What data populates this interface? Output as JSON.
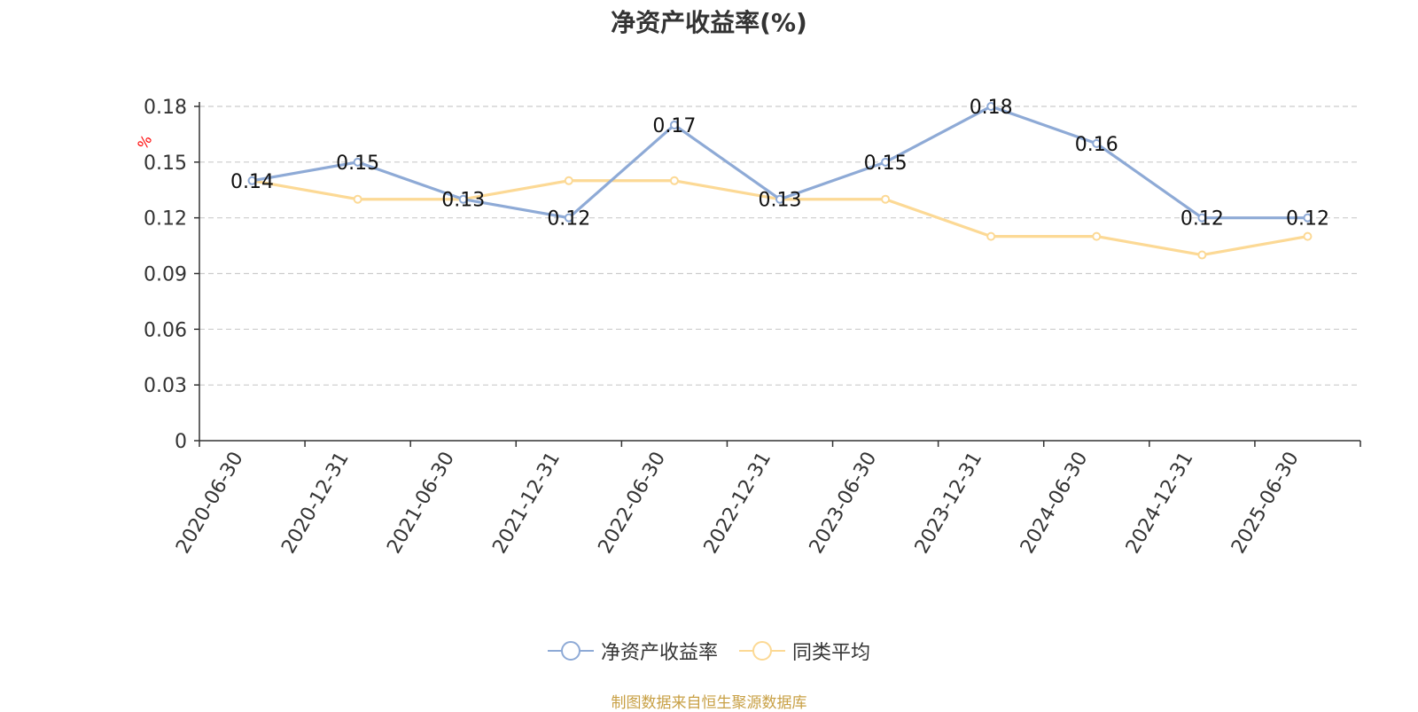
{
  "chart_data": {
    "type": "line",
    "title": "净资产收益率(%)",
    "ylabel": "%",
    "xlabel": "",
    "ylim": [
      0,
      0.18
    ],
    "yticks": [
      "0",
      "0.03",
      "0.06",
      "0.09",
      "0.12",
      "0.15",
      "0.18"
    ],
    "grid": true,
    "legend_position": "bottom",
    "categories": [
      "2020-06-30",
      "2020-12-31",
      "2021-06-30",
      "2021-12-31",
      "2022-06-30",
      "2022-12-31",
      "2023-06-30",
      "2023-12-31",
      "2024-06-30",
      "2024-12-31",
      "2025-06-30"
    ],
    "series": [
      {
        "name": "净资产收益率",
        "color": "#8eaad6",
        "values": [
          0.14,
          0.15,
          0.13,
          0.12,
          0.17,
          0.13,
          0.15,
          0.18,
          0.16,
          0.12,
          0.12
        ],
        "labels": [
          "0.14",
          "0.15",
          "0.13",
          "0.12",
          "0.17",
          "0.13",
          "0.15",
          "0.18",
          "0.16",
          "0.12",
          "0.12"
        ]
      },
      {
        "name": "同类平均",
        "color": "#fcd995",
        "values": [
          0.14,
          0.13,
          0.13,
          0.14,
          0.14,
          0.13,
          0.13,
          0.11,
          0.11,
          0.1,
          0.11
        ]
      }
    ]
  },
  "footer": {
    "source": "制图数据来自恒生聚源数据库"
  }
}
